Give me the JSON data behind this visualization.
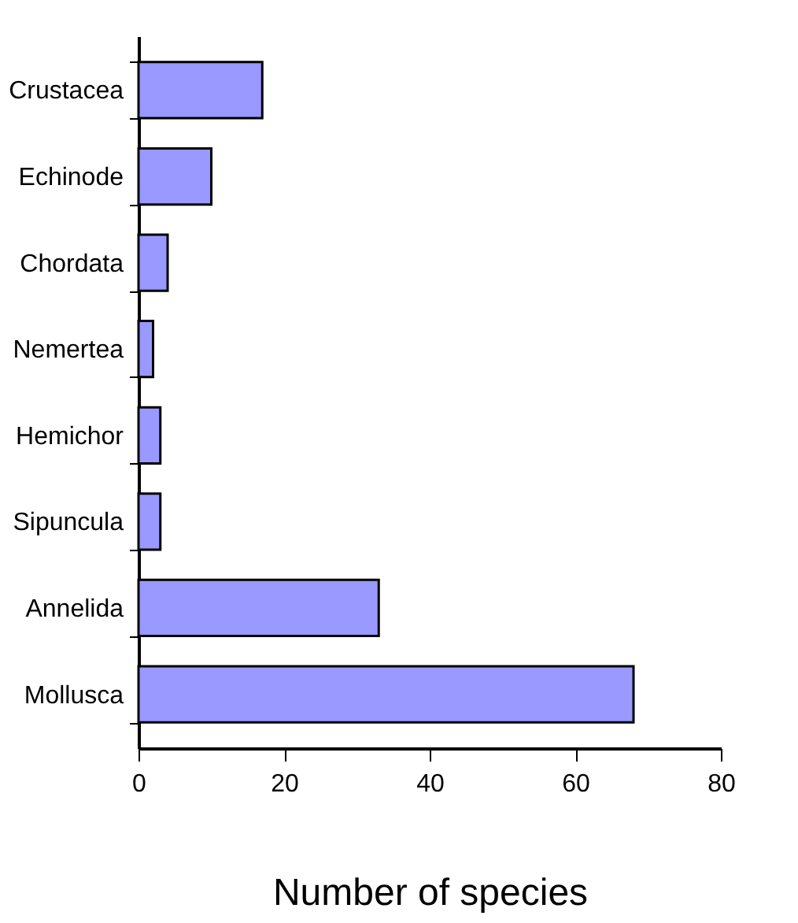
{
  "chart_data": {
    "type": "bar",
    "orientation": "horizontal",
    "xlabel": "Number of species",
    "categories": [
      "Crustacea",
      "Echinode",
      "Chordata",
      "Nemertea",
      "Hemichor",
      "Sipuncula",
      "Annelida",
      "Mollusca"
    ],
    "values": [
      17,
      10,
      4,
      2,
      3,
      3,
      33,
      68
    ],
    "color": "#9999ff",
    "xlim": [
      0,
      80
    ],
    "xticks": [
      0,
      20,
      40,
      60,
      80
    ],
    "grid": false,
    "legend": false
  }
}
